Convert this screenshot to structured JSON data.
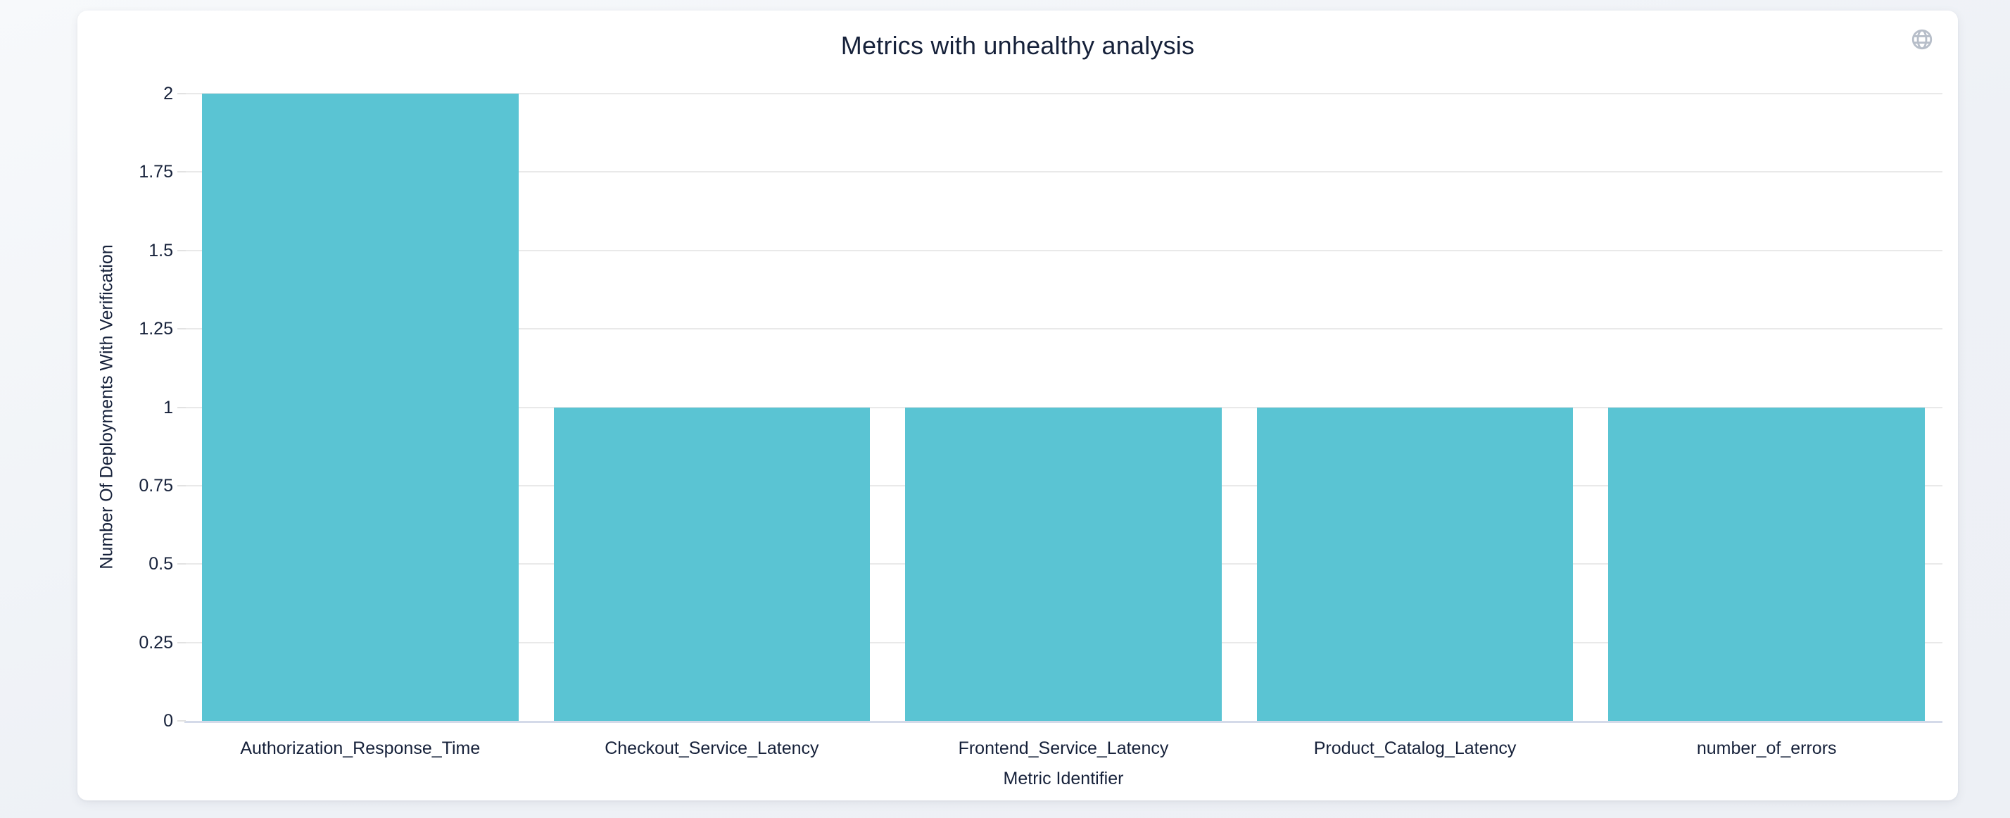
{
  "header": {
    "title": "Metrics with unhealthy analysis",
    "globe_icon": "globe-icon"
  },
  "colors": {
    "bar": "#5ac4d3",
    "text": "#16213a",
    "gridline": "#e9e9e9",
    "axis_line": "#d4dae9",
    "tick_mark": "#e2e2e2",
    "globe_icon": "#b7bec9",
    "card_background": "#ffffff",
    "page_background": "#eef1f6"
  },
  "chart_data": {
    "type": "bar",
    "title": "Metrics with unhealthy analysis",
    "categories": [
      "Authorization_Response_Time",
      "Checkout_Service_Latency",
      "Frontend_Service_Latency",
      "Product_Catalog_Latency",
      "number_of_errors"
    ],
    "values": [
      2,
      1,
      1,
      1,
      1
    ],
    "xlabel": "Metric Identifier",
    "ylabel": "Number Of Deployments With Verification",
    "ylim": [
      0,
      2
    ],
    "yticks": [
      0,
      0.25,
      0.5,
      0.75,
      1,
      1.25,
      1.5,
      1.75,
      2
    ],
    "ytick_labels": [
      "0",
      "0.25",
      "0.5",
      "0.75",
      "1",
      "1.25",
      "1.5",
      "1.75",
      "2"
    ],
    "grid": true,
    "legend_position": "none",
    "bar_color": "#5ac4d3",
    "bar_width_ratio": 0.9
  }
}
